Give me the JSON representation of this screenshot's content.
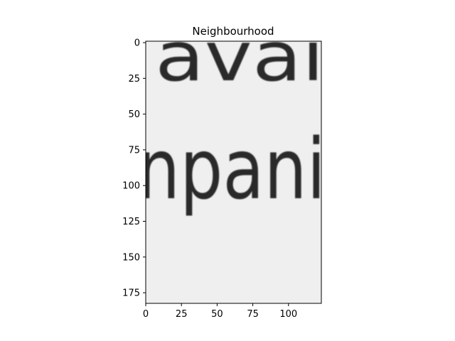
{
  "figure": {
    "title": "Neighbourhood"
  },
  "image": {
    "description_text_top": "avai",
    "description_text_bottom": "npani",
    "background_color": "#efefef",
    "ink_color": "#2a2a2a"
  },
  "axes": {
    "x_ticks": [
      "0",
      "25",
      "50",
      "75",
      "100"
    ],
    "y_ticks": [
      "0",
      "25",
      "50",
      "75",
      "100",
      "125",
      "150",
      "175"
    ]
  }
}
